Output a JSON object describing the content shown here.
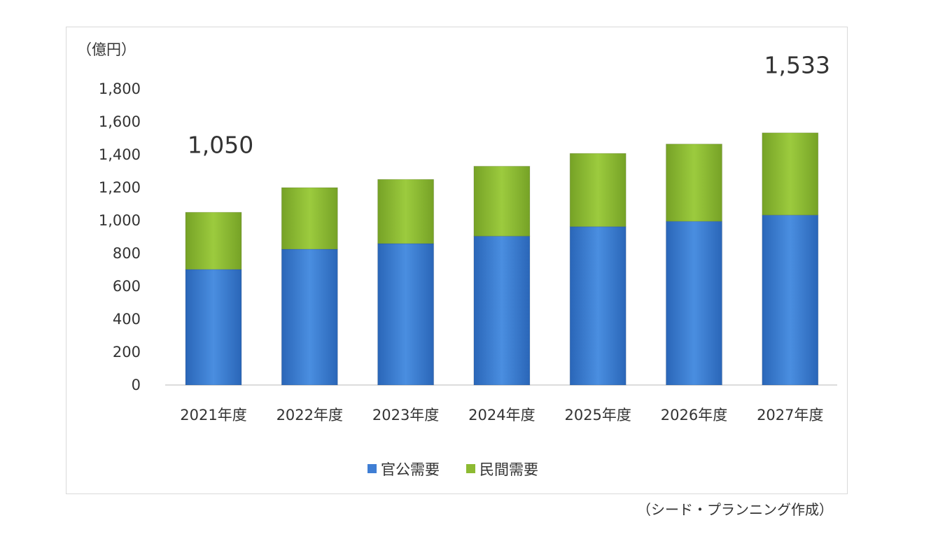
{
  "chart_data": {
    "type": "bar",
    "stacked": true,
    "unit_label": "（億円）",
    "categories": [
      "2021年度",
      "2022年度",
      "2023年度",
      "2024年度",
      "2025年度",
      "2026年度",
      "2027年度"
    ],
    "series": [
      {
        "name": "官公需要",
        "color": "#3f7ed4",
        "values": [
          703,
          826,
          860,
          905,
          963,
          995,
          1033
        ]
      },
      {
        "name": "民間需要",
        "color": "#8dba32",
        "values": [
          347,
          374,
          390,
          425,
          445,
          470,
          500
        ]
      }
    ],
    "annotations": [
      {
        "category": "2021年度",
        "text": "1,050"
      },
      {
        "category": "2027年度",
        "text": "1,533"
      }
    ],
    "y_ticks": [
      "0",
      "200",
      "400",
      "600",
      "800",
      "1,000",
      "1,200",
      "1,400",
      "1,600",
      "1,800"
    ],
    "ylim": [
      0,
      1800
    ],
    "grid": false,
    "legend_position": "bottom"
  },
  "source_note": "（シード・プランニング作成）"
}
